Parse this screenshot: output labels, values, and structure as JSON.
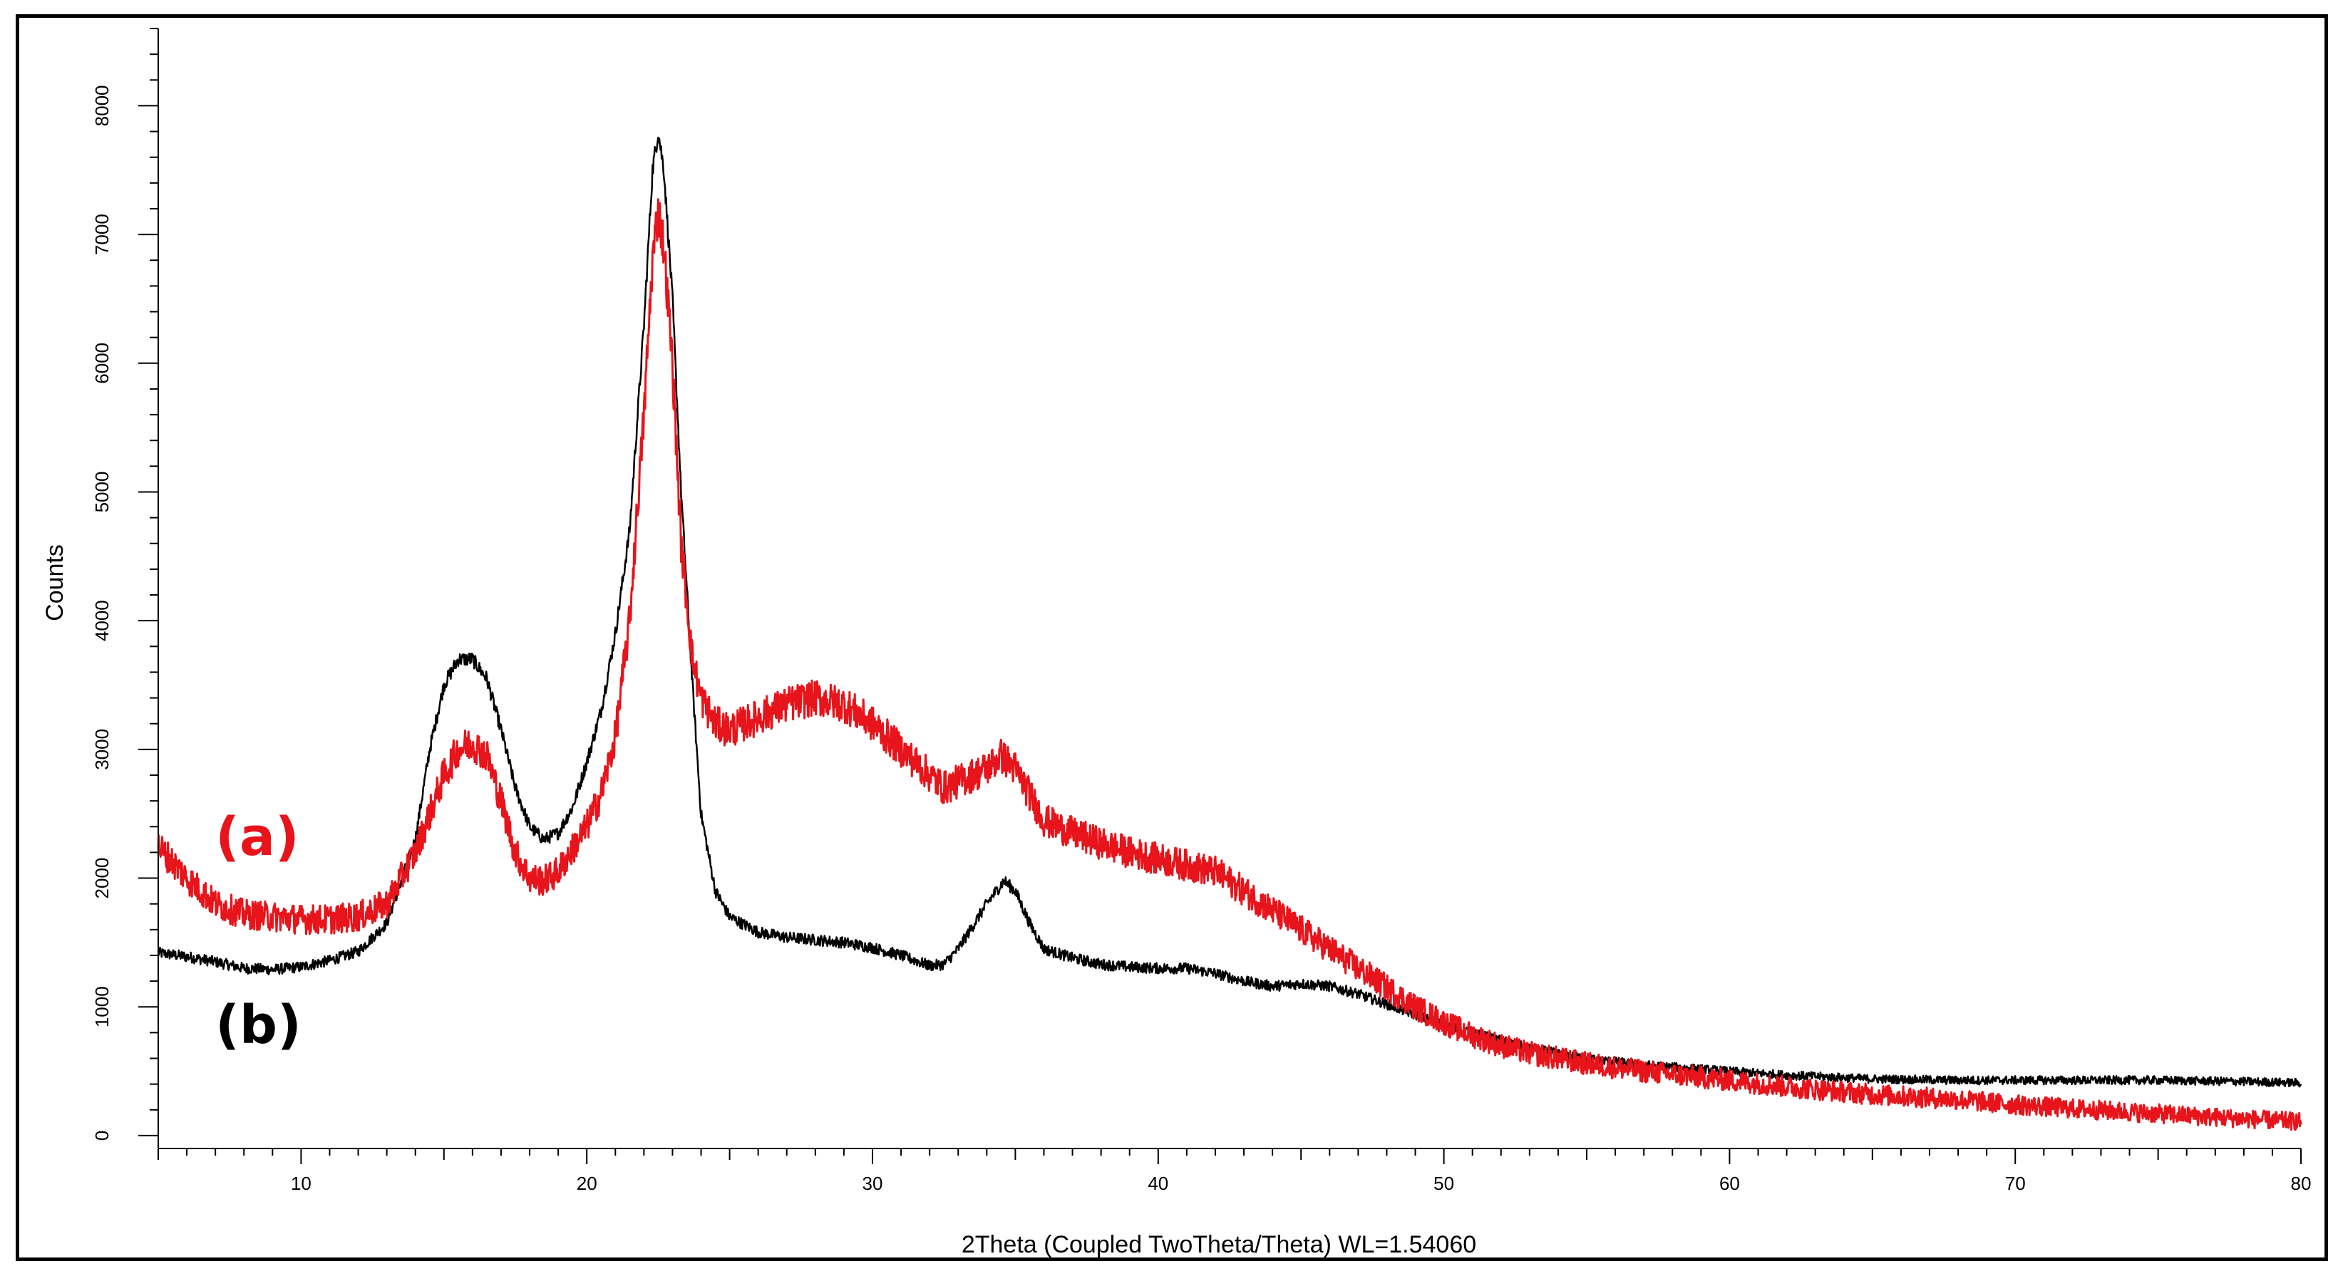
{
  "chart_data": {
    "type": "line",
    "title": "",
    "xlabel": "2Theta (Coupled TwoTheta/Theta) WL=1.54060",
    "ylabel": "Counts",
    "xlim": [
      5,
      80
    ],
    "ylim": [
      -100,
      8600
    ],
    "x_ticks": [
      10,
      20,
      30,
      40,
      50,
      60,
      70,
      80
    ],
    "y_ticks": [
      0,
      1000,
      2000,
      3000,
      4000,
      5000,
      6000,
      7000,
      8000
    ],
    "x_minor_step": 1,
    "y_minor_step": 200,
    "grid": false,
    "series": [
      {
        "name": "(a)",
        "color": "#e8141b",
        "label_at": [
          7.0,
          2180
        ],
        "noise": 90,
        "points": [
          [
            5,
            2250
          ],
          [
            6,
            2000
          ],
          [
            7,
            1800
          ],
          [
            8,
            1720
          ],
          [
            9,
            1700
          ],
          [
            10,
            1680
          ],
          [
            11,
            1680
          ],
          [
            12,
            1700
          ],
          [
            13,
            1800
          ],
          [
            14,
            2200
          ],
          [
            15,
            2800
          ],
          [
            15.5,
            3000
          ],
          [
            16,
            3050
          ],
          [
            16.5,
            2950
          ],
          [
            17,
            2600
          ],
          [
            17.5,
            2200
          ],
          [
            18,
            2000
          ],
          [
            18.5,
            1980
          ],
          [
            19,
            2050
          ],
          [
            20,
            2400
          ],
          [
            20.5,
            2650
          ],
          [
            21,
            3100
          ],
          [
            21.5,
            4000
          ],
          [
            22,
            5600
          ],
          [
            22.3,
            6800
          ],
          [
            22.5,
            7200
          ],
          [
            22.7,
            6900
          ],
          [
            23,
            6000
          ],
          [
            23.3,
            4600
          ],
          [
            23.7,
            3700
          ],
          [
            24,
            3400
          ],
          [
            24.5,
            3200
          ],
          [
            25,
            3150
          ],
          [
            26,
            3250
          ],
          [
            27,
            3350
          ],
          [
            28,
            3400
          ],
          [
            29,
            3350
          ],
          [
            30,
            3200
          ],
          [
            31,
            3000
          ],
          [
            32,
            2800
          ],
          [
            32.5,
            2700
          ],
          [
            33,
            2750
          ],
          [
            34,
            2850
          ],
          [
            34.5,
            2950
          ],
          [
            35,
            2850
          ],
          [
            35.5,
            2650
          ],
          [
            36,
            2450
          ],
          [
            37,
            2350
          ],
          [
            38,
            2270
          ],
          [
            39,
            2200
          ],
          [
            40,
            2150
          ],
          [
            41,
            2100
          ],
          [
            42,
            2050
          ],
          [
            43,
            1900
          ],
          [
            44,
            1750
          ],
          [
            45,
            1600
          ],
          [
            46,
            1450
          ],
          [
            47,
            1300
          ],
          [
            48,
            1150
          ],
          [
            49,
            1000
          ],
          [
            50,
            880
          ],
          [
            51,
            780
          ],
          [
            52,
            700
          ],
          [
            53,
            640
          ],
          [
            55,
            560
          ],
          [
            57,
            500
          ],
          [
            60,
            430
          ],
          [
            62,
            380
          ],
          [
            65,
            320
          ],
          [
            68,
            280
          ],
          [
            70,
            240
          ],
          [
            72,
            210
          ],
          [
            75,
            170
          ],
          [
            78,
            130
          ],
          [
            80,
            110
          ]
        ]
      },
      {
        "name": "(b)",
        "color": "#000000",
        "label_at": [
          7.0,
          720
        ],
        "noise": 35,
        "points": [
          [
            5,
            1420
          ],
          [
            6,
            1390
          ],
          [
            7,
            1350
          ],
          [
            8,
            1300
          ],
          [
            9,
            1290
          ],
          [
            10,
            1310
          ],
          [
            11,
            1360
          ],
          [
            12,
            1430
          ],
          [
            13,
            1650
          ],
          [
            14,
            2300
          ],
          [
            14.5,
            3000
          ],
          [
            15,
            3500
          ],
          [
            15.5,
            3700
          ],
          [
            16,
            3700
          ],
          [
            16.5,
            3550
          ],
          [
            17,
            3150
          ],
          [
            17.5,
            2700
          ],
          [
            18,
            2400
          ],
          [
            18.5,
            2300
          ],
          [
            19,
            2350
          ],
          [
            19.5,
            2550
          ],
          [
            20,
            2900
          ],
          [
            20.5,
            3300
          ],
          [
            21,
            3900
          ],
          [
            21.5,
            4700
          ],
          [
            22,
            6300
          ],
          [
            22.3,
            7500
          ],
          [
            22.5,
            7800
          ],
          [
            22.7,
            7500
          ],
          [
            23,
            6500
          ],
          [
            23.3,
            5000
          ],
          [
            23.7,
            3500
          ],
          [
            24,
            2500
          ],
          [
            24.5,
            1900
          ],
          [
            25,
            1700
          ],
          [
            26,
            1580
          ],
          [
            27,
            1540
          ],
          [
            28,
            1520
          ],
          [
            29,
            1500
          ],
          [
            30,
            1460
          ],
          [
            31,
            1400
          ],
          [
            32,
            1320
          ],
          [
            32.5,
            1330
          ],
          [
            33,
            1450
          ],
          [
            34,
            1800
          ],
          [
            34.6,
            1980
          ],
          [
            35,
            1900
          ],
          [
            35.5,
            1650
          ],
          [
            36,
            1450
          ],
          [
            37,
            1380
          ],
          [
            38,
            1330
          ],
          [
            39,
            1310
          ],
          [
            40,
            1300
          ],
          [
            41,
            1300
          ],
          [
            42,
            1260
          ],
          [
            43,
            1200
          ],
          [
            44,
            1160
          ],
          [
            45,
            1180
          ],
          [
            46,
            1160
          ],
          [
            47,
            1100
          ],
          [
            48,
            1020
          ],
          [
            49,
            940
          ],
          [
            50,
            860
          ],
          [
            51,
            800
          ],
          [
            52,
            740
          ],
          [
            53,
            680
          ],
          [
            55,
            600
          ],
          [
            57,
            550
          ],
          [
            60,
            500
          ],
          [
            62,
            470
          ],
          [
            65,
            440
          ],
          [
            68,
            430
          ],
          [
            70,
            430
          ],
          [
            72,
            430
          ],
          [
            75,
            430
          ],
          [
            78,
            420
          ],
          [
            80,
            410
          ]
        ]
      }
    ]
  }
}
